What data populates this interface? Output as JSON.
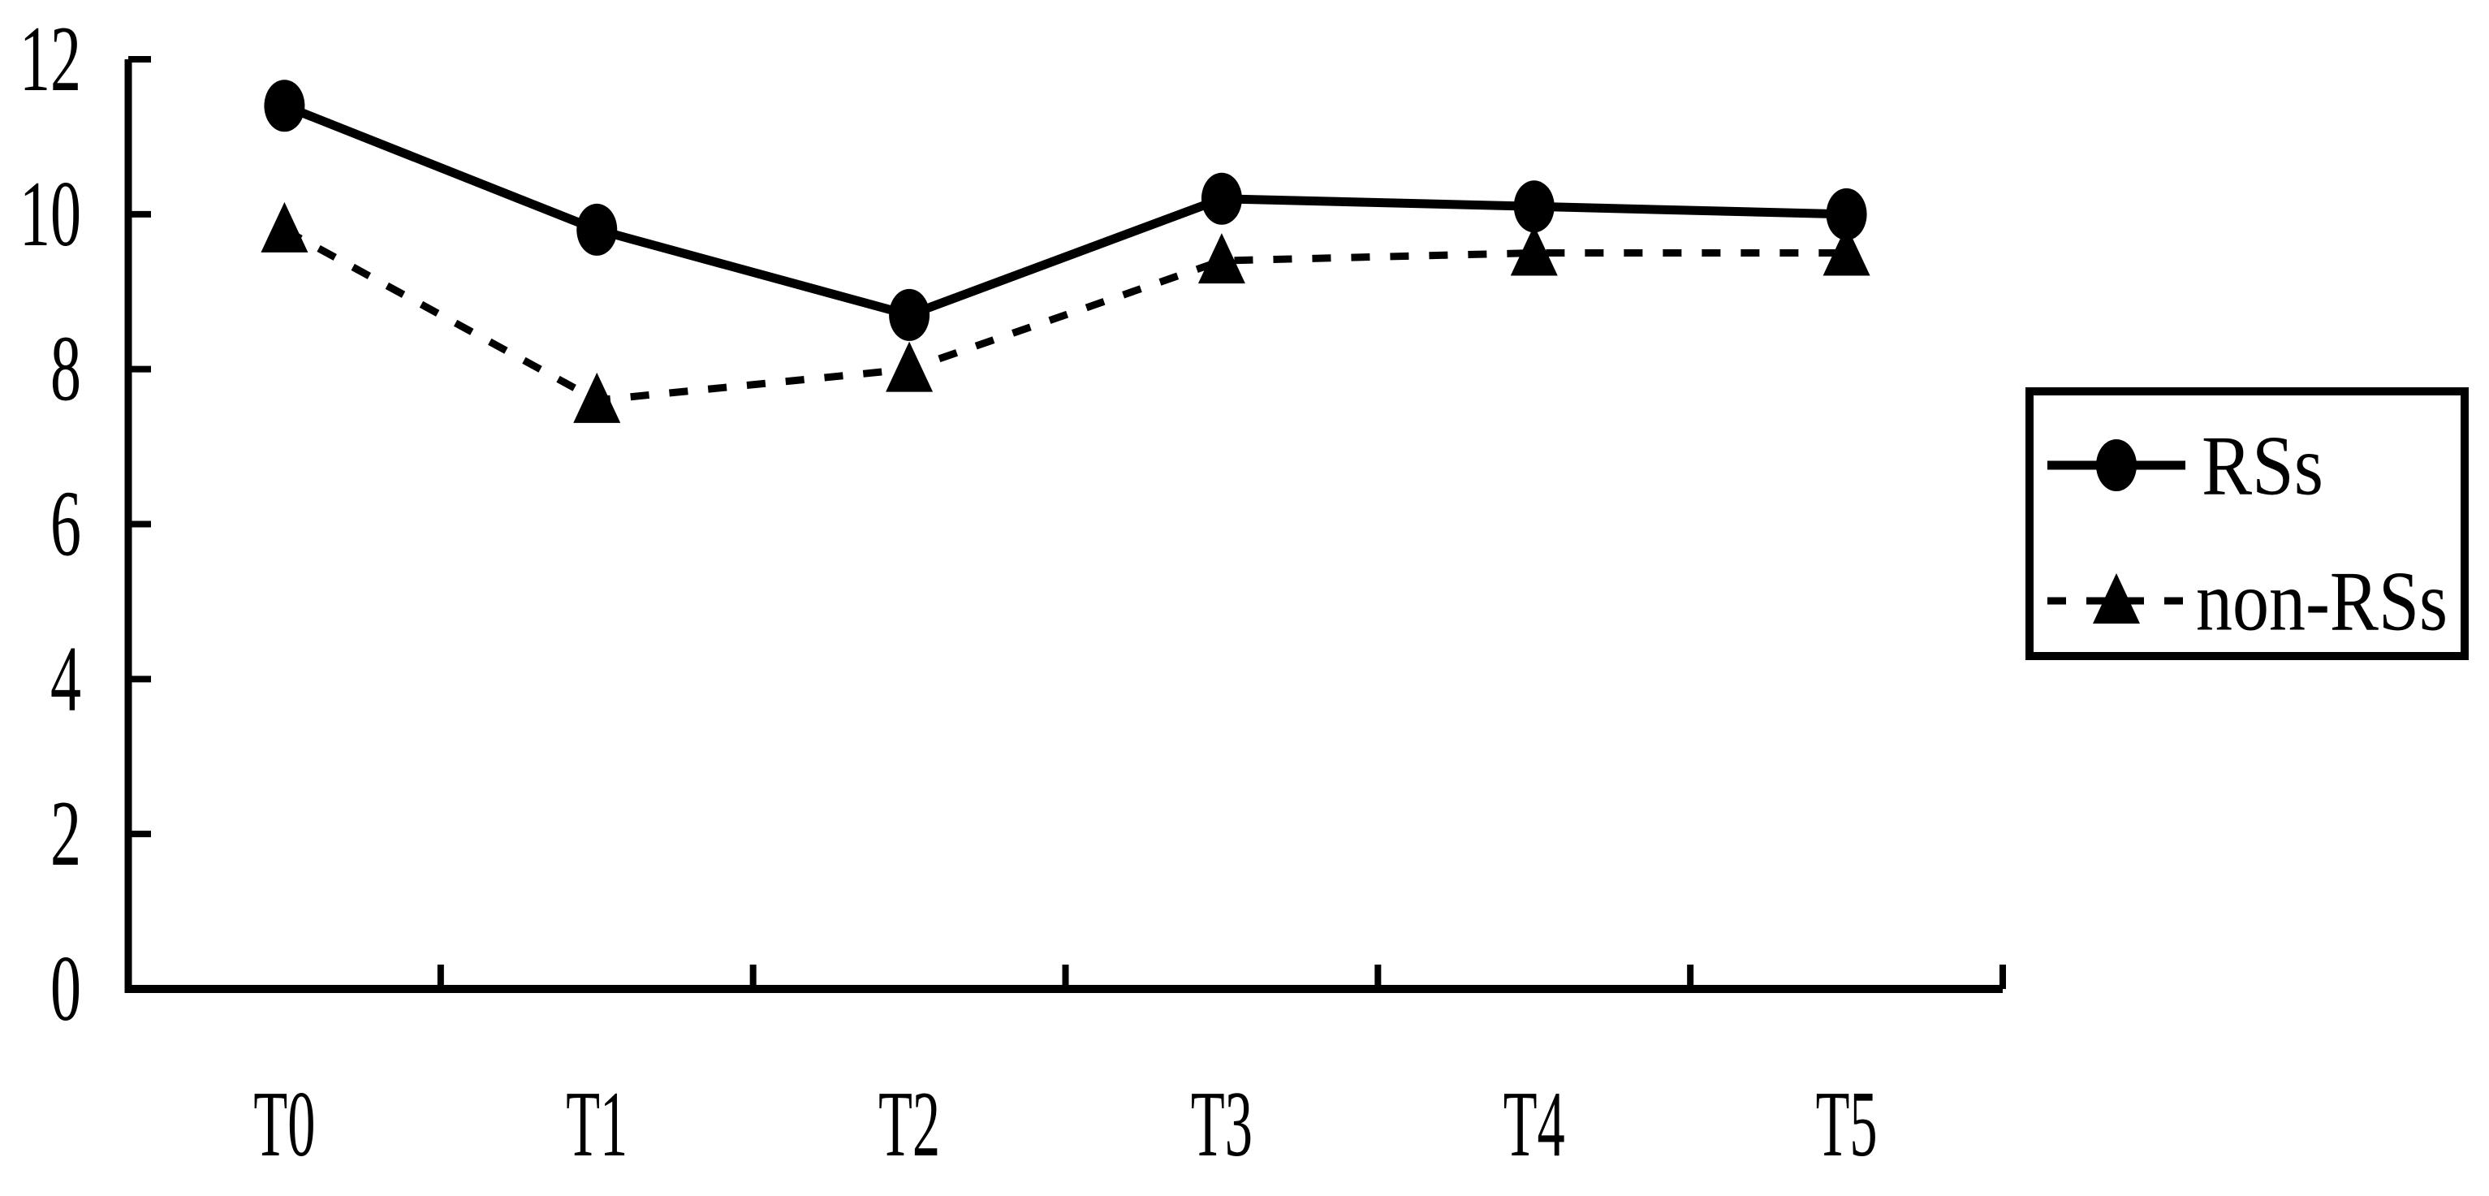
{
  "colors": {
    "foreground": "#000000",
    "background": "#ffffff"
  },
  "chart_data": {
    "type": "line",
    "title": "",
    "xlabel": "",
    "ylabel": "",
    "grid": false,
    "categories": [
      "T0",
      "T1",
      "T2",
      "T3",
      "T4",
      "T5"
    ],
    "series": [
      {
        "name": "RSs",
        "values": [
          11.4,
          9.8,
          8.7,
          10.2,
          10.1,
          10.0
        ],
        "line_style": "solid",
        "marker": "circle",
        "color": "#000000"
      },
      {
        "name": "non-RSs",
        "values": [
          9.8,
          7.6,
          8.0,
          9.4,
          9.5,
          9.5
        ],
        "line_style": "dashed",
        "marker": "triangle",
        "color": "#000000"
      }
    ],
    "y_axis": {
      "min": 0,
      "max": 12,
      "tick_step": 2,
      "tick_labels": [
        "0",
        "2",
        "4",
        "6",
        "8",
        "10",
        "12"
      ]
    },
    "x_axis": {
      "tick_labels": [
        "T0",
        "T1",
        "T2",
        "T3",
        "T4",
        "T5"
      ]
    },
    "legend": {
      "position": "right",
      "entries": [
        "RSs",
        "non-RSs"
      ]
    }
  }
}
